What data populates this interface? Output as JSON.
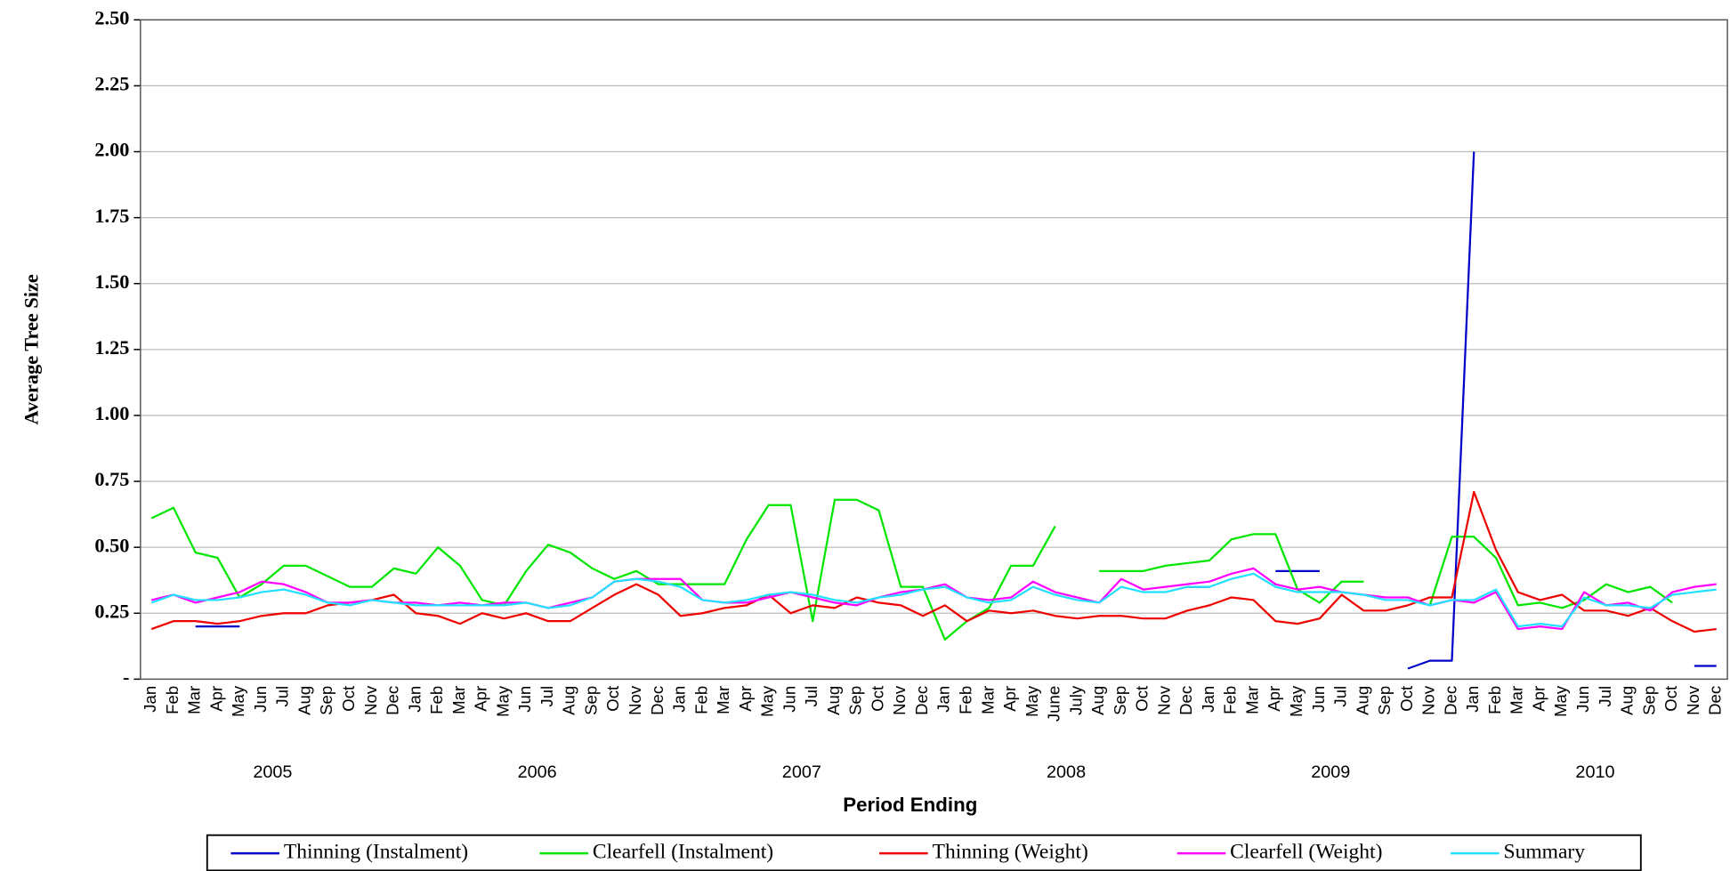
{
  "chart_data": {
    "type": "line",
    "y_label": "Average Tree Size",
    "x_label": "Period Ending",
    "categories": [
      "Jan",
      "Feb",
      "Mar",
      "Apr",
      "May",
      "Jun",
      "Jul",
      "Aug",
      "Sep",
      "Oct",
      "Nov",
      "Dec",
      "Jan",
      "Feb",
      "Mar",
      "Apr",
      "May",
      "Jun",
      "Jul",
      "Aug",
      "Sep",
      "Oct",
      "Nov",
      "Dec",
      "Jan",
      "Feb",
      "Mar",
      "Apr",
      "May",
      "Jun",
      "Jul",
      "Aug",
      "Sep",
      "Oct",
      "Nov",
      "Dec",
      "Jan",
      "Feb",
      "Mar",
      "Apr",
      "May",
      "June",
      "July",
      "Aug",
      "Sep",
      "Oct",
      "Nov",
      "Dec",
      "Jan",
      "Feb",
      "Mar",
      "Apr",
      "May",
      "Jun",
      "Jul",
      "Aug",
      "Sep",
      "Oct",
      "Nov",
      "Dec",
      "Jan",
      "Feb",
      "Mar",
      "Apr",
      "May",
      "Jun",
      "Jul",
      "Aug",
      "Sep",
      "Oct",
      "Nov",
      "Dec"
    ],
    "year_labels": [
      "2005",
      "2006",
      "2007",
      "2008",
      "2009",
      "2010"
    ],
    "ylim": [
      0,
      2.5
    ],
    "yticks": [
      {
        "value": 0,
        "label": "-"
      },
      0.25,
      {
        "value": 0.5,
        "label": "0.50"
      },
      0.75,
      {
        "value": 1,
        "label": "1.00"
      },
      1.25,
      {
        "value": 1.5,
        "label": "1.50"
      },
      1.75,
      {
        "value": 2,
        "label": "2.00"
      },
      2.25,
      {
        "value": 2.5,
        "label": "2.50"
      }
    ],
    "grid": true,
    "legend": "bottom",
    "series": [
      {
        "name": "Thinning (Instalment)",
        "color": "#0000c8",
        "values": [
          null,
          null,
          0.2,
          0.2,
          0.2,
          null,
          null,
          null,
          null,
          null,
          null,
          null,
          null,
          null,
          null,
          null,
          null,
          null,
          null,
          null,
          null,
          null,
          null,
          null,
          null,
          null,
          null,
          null,
          null,
          null,
          null,
          null,
          null,
          null,
          null,
          null,
          null,
          null,
          null,
          null,
          null,
          null,
          null,
          null,
          null,
          null,
          null,
          0.35,
          0.35,
          null,
          null,
          0.41,
          0.41,
          0.41,
          null,
          null,
          null,
          0.04,
          0.07,
          0.07,
          2.0,
          null,
          null,
          null,
          null,
          null,
          null,
          null,
          null,
          null,
          0.05,
          0.05
        ]
      },
      {
        "name": "Clearfell (Instalment)",
        "color": "#00e600",
        "values": [
          0.61,
          0.65,
          0.48,
          0.46,
          0.31,
          0.36,
          0.43,
          0.43,
          0.39,
          0.35,
          0.35,
          0.42,
          0.4,
          0.5,
          0.43,
          0.3,
          0.28,
          0.41,
          0.51,
          0.48,
          0.42,
          0.38,
          0.41,
          0.36,
          0.36,
          0.36,
          0.36,
          0.53,
          0.66,
          0.66,
          0.22,
          0.68,
          0.68,
          0.64,
          0.35,
          0.35,
          0.15,
          0.22,
          0.27,
          0.43,
          0.43,
          0.58,
          null,
          0.41,
          0.41,
          0.41,
          0.43,
          0.44,
          0.45,
          0.53,
          0.55,
          0.55,
          0.34,
          0.29,
          0.37,
          0.37,
          null,
          null,
          0.28,
          0.54,
          0.54,
          0.46,
          0.28,
          0.29,
          0.27,
          0.3,
          0.36,
          0.33,
          0.35,
          0.29,
          null,
          null
        ]
      },
      {
        "name": "Thinning (Weight)",
        "color": "#ee0000",
        "values": [
          0.19,
          0.22,
          0.22,
          0.21,
          0.22,
          0.24,
          0.25,
          0.25,
          0.28,
          0.29,
          0.3,
          0.32,
          0.25,
          0.24,
          0.21,
          0.25,
          0.23,
          0.25,
          0.22,
          0.22,
          0.27,
          0.32,
          0.36,
          0.32,
          0.24,
          0.25,
          0.27,
          0.28,
          0.32,
          0.25,
          0.28,
          0.27,
          0.31,
          0.29,
          0.28,
          0.24,
          0.28,
          0.22,
          0.26,
          0.25,
          0.26,
          0.24,
          0.23,
          0.24,
          0.24,
          0.23,
          0.23,
          0.26,
          0.28,
          0.31,
          0.3,
          0.22,
          0.21,
          0.23,
          0.32,
          0.26,
          0.26,
          0.28,
          0.31,
          0.31,
          0.71,
          0.49,
          0.33,
          0.3,
          0.32,
          0.26,
          0.26,
          0.24,
          0.27,
          0.22,
          0.18,
          0.19
        ]
      },
      {
        "name": "Clearfell (Weight)",
        "color": "#ff00ff",
        "values": [
          0.3,
          0.32,
          0.29,
          0.31,
          0.33,
          0.37,
          0.36,
          0.33,
          0.29,
          0.29,
          0.3,
          0.29,
          0.29,
          0.28,
          0.29,
          0.28,
          0.29,
          0.29,
          0.27,
          0.29,
          0.31,
          0.37,
          0.38,
          0.38,
          0.38,
          0.3,
          0.29,
          0.29,
          0.31,
          0.33,
          0.31,
          0.29,
          0.28,
          0.31,
          0.33,
          0.34,
          0.36,
          0.31,
          0.3,
          0.31,
          0.37,
          0.33,
          0.31,
          0.29,
          0.38,
          0.34,
          0.35,
          0.36,
          0.37,
          0.4,
          0.42,
          0.36,
          0.34,
          0.35,
          0.33,
          0.32,
          0.31,
          0.31,
          0.28,
          0.3,
          0.29,
          0.33,
          0.19,
          0.2,
          0.19,
          0.33,
          0.28,
          0.29,
          0.26,
          0.33,
          0.35,
          0.36
        ]
      },
      {
        "name": "Summary",
        "color": "#22e0ff",
        "values": [
          0.29,
          0.32,
          0.3,
          0.3,
          0.31,
          0.33,
          0.34,
          0.32,
          0.29,
          0.28,
          0.3,
          0.29,
          0.28,
          0.28,
          0.28,
          0.28,
          0.28,
          0.29,
          0.27,
          0.28,
          0.31,
          0.37,
          0.38,
          0.37,
          0.35,
          0.3,
          0.29,
          0.3,
          0.32,
          0.33,
          0.32,
          0.3,
          0.29,
          0.31,
          0.32,
          0.34,
          0.35,
          0.31,
          0.29,
          0.3,
          0.35,
          0.32,
          0.3,
          0.29,
          0.35,
          0.33,
          0.33,
          0.35,
          0.35,
          0.38,
          0.4,
          0.35,
          0.33,
          0.33,
          0.33,
          0.32,
          0.3,
          0.3,
          0.28,
          0.3,
          0.3,
          0.34,
          0.2,
          0.21,
          0.2,
          0.31,
          0.28,
          0.28,
          0.27,
          0.32,
          0.33,
          0.34
        ]
      }
    ]
  }
}
